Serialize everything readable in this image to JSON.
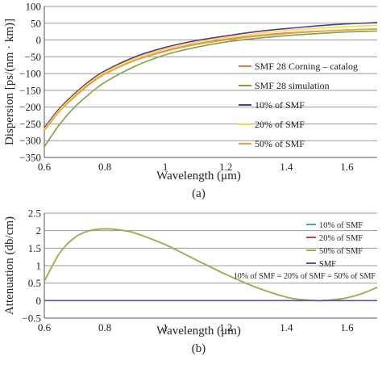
{
  "chart_data": [
    {
      "type": "line",
      "caption": "(a)",
      "xlabel": "Wavelength (μm)",
      "ylabel": "Dispersion [ps/(nm · km)]",
      "xlim": [
        0.6,
        1.7
      ],
      "ylim": [
        -350,
        100
      ],
      "xticks": [
        0.6,
        0.8,
        1,
        1.2,
        1.4,
        1.6
      ],
      "xtick_labels": [
        "0.6",
        "0.8",
        "1",
        "1.2",
        "1.4",
        "1.6"
      ],
      "yticks": [
        -350,
        -300,
        -250,
        -200,
        -150,
        -100,
        -50,
        0,
        50,
        100
      ],
      "ytick_labels": [
        "−350",
        "−300",
        "−250",
        "−200",
        "−150",
        "−100",
        "−50",
        "0",
        "50",
        "100"
      ],
      "grid": "horizontal",
      "legend_position": "right",
      "series": [
        {
          "name": "SMF 28 Corning – catalog",
          "color": "#e8735a",
          "x": [
            0.6,
            0.65,
            0.7,
            0.75,
            0.8,
            0.9,
            1.0,
            1.1,
            1.2,
            1.3,
            1.4,
            1.5,
            1.6,
            1.7
          ],
          "y": [
            -268,
            -212,
            -168,
            -130,
            -101,
            -60,
            -32,
            -12,
            2,
            13,
            21,
            26,
            30,
            33
          ]
        },
        {
          "name": "SMF 28 simulation",
          "color": "#7aa63a",
          "x": [
            0.6,
            0.65,
            0.7,
            0.75,
            0.8,
            0.9,
            1.0,
            1.1,
            1.2,
            1.3,
            1.4,
            1.5,
            1.6,
            1.7
          ],
          "y": [
            -318,
            -252,
            -200,
            -160,
            -126,
            -78,
            -44,
            -22,
            -6,
            5,
            13,
            19,
            24,
            27
          ]
        },
        {
          "name": "10% of SMF",
          "color": "#4a3a9a",
          "x": [
            0.6,
            0.65,
            0.7,
            0.75,
            0.8,
            0.9,
            1.0,
            1.1,
            1.2,
            1.3,
            1.4,
            1.5,
            1.6,
            1.7
          ],
          "y": [
            -262,
            -204,
            -160,
            -122,
            -92,
            -50,
            -22,
            -2,
            12,
            25,
            34,
            42,
            48,
            52
          ]
        },
        {
          "name": "20% of SMF",
          "color": "#f0e040",
          "x": [
            0.6,
            0.65,
            0.7,
            0.75,
            0.8,
            0.9,
            1.0,
            1.1,
            1.2,
            1.3,
            1.4,
            1.5,
            1.6,
            1.7
          ],
          "y": [
            -266,
            -208,
            -164,
            -126,
            -96,
            -55,
            -27,
            -7,
            7,
            19,
            28,
            35,
            40,
            44
          ]
        },
        {
          "name": "50% of SMF",
          "color": "#f0a040",
          "x": [
            0.6,
            0.65,
            0.7,
            0.75,
            0.8,
            0.9,
            1.0,
            1.1,
            1.2,
            1.3,
            1.4,
            1.5,
            1.6,
            1.7
          ],
          "y": [
            -270,
            -213,
            -170,
            -132,
            -102,
            -61,
            -34,
            -14,
            0,
            11,
            19,
            25,
            30,
            33
          ]
        }
      ]
    },
    {
      "type": "line",
      "caption": "(b)",
      "xlabel": "Wavelength (μm)",
      "ylabel": "Attenuation (db/cm)",
      "xlim": [
        0.6,
        1.7
      ],
      "ylim": [
        -0.5,
        2.5
      ],
      "xticks": [
        0.6,
        0.8,
        1,
        1.2,
        1.4,
        1.6
      ],
      "xtick_labels": [
        "0.6",
        "0.8",
        "1",
        "1.2",
        "1.4",
        "1.6"
      ],
      "yticks": [
        -0.5,
        0,
        0.5,
        1,
        1.5,
        2,
        2.5
      ],
      "ytick_labels": [
        "−0.5",
        "0",
        "0.5",
        "1",
        "1.5",
        "2",
        "2.5"
      ],
      "grid": "horizontal",
      "legend_position": "right",
      "annotation": "10% of SMF = 20% of SMF = 50% of SMF",
      "series": [
        {
          "name": "10% of SMF",
          "color": "#4aa0c8",
          "x": [
            0.6,
            0.65,
            0.7,
            0.75,
            0.8,
            0.85,
            0.9,
            1.0,
            1.1,
            1.2,
            1.3,
            1.4,
            1.45,
            1.5,
            1.55,
            1.6,
            1.65,
            1.7
          ],
          "y": [
            0.55,
            1.35,
            1.8,
            2.0,
            2.05,
            2.02,
            1.93,
            1.6,
            1.17,
            0.75,
            0.38,
            0.1,
            0.03,
            0.0,
            0.02,
            0.08,
            0.2,
            0.38
          ]
        },
        {
          "name": "20% of SMF",
          "color": "#d04040",
          "x": [
            0.6,
            0.65,
            0.7,
            0.75,
            0.8,
            0.85,
            0.9,
            1.0,
            1.1,
            1.2,
            1.3,
            1.4,
            1.45,
            1.5,
            1.55,
            1.6,
            1.65,
            1.7
          ],
          "y": [
            0.55,
            1.35,
            1.8,
            2.0,
            2.05,
            2.02,
            1.93,
            1.6,
            1.17,
            0.75,
            0.38,
            0.1,
            0.03,
            0.0,
            0.02,
            0.08,
            0.2,
            0.38
          ]
        },
        {
          "name": "50% of SMF",
          "color": "#9ab840",
          "x": [
            0.6,
            0.65,
            0.7,
            0.75,
            0.8,
            0.85,
            0.9,
            1.0,
            1.1,
            1.2,
            1.3,
            1.4,
            1.45,
            1.5,
            1.55,
            1.6,
            1.65,
            1.7
          ],
          "y": [
            0.55,
            1.35,
            1.8,
            2.0,
            2.05,
            2.02,
            1.93,
            1.6,
            1.17,
            0.75,
            0.38,
            0.1,
            0.03,
            0.0,
            0.02,
            0.08,
            0.2,
            0.38
          ]
        },
        {
          "name": "SMF",
          "color": "#6a4aa8",
          "x": [
            0.6,
            1.7
          ],
          "y": [
            0,
            0
          ]
        }
      ]
    }
  ]
}
